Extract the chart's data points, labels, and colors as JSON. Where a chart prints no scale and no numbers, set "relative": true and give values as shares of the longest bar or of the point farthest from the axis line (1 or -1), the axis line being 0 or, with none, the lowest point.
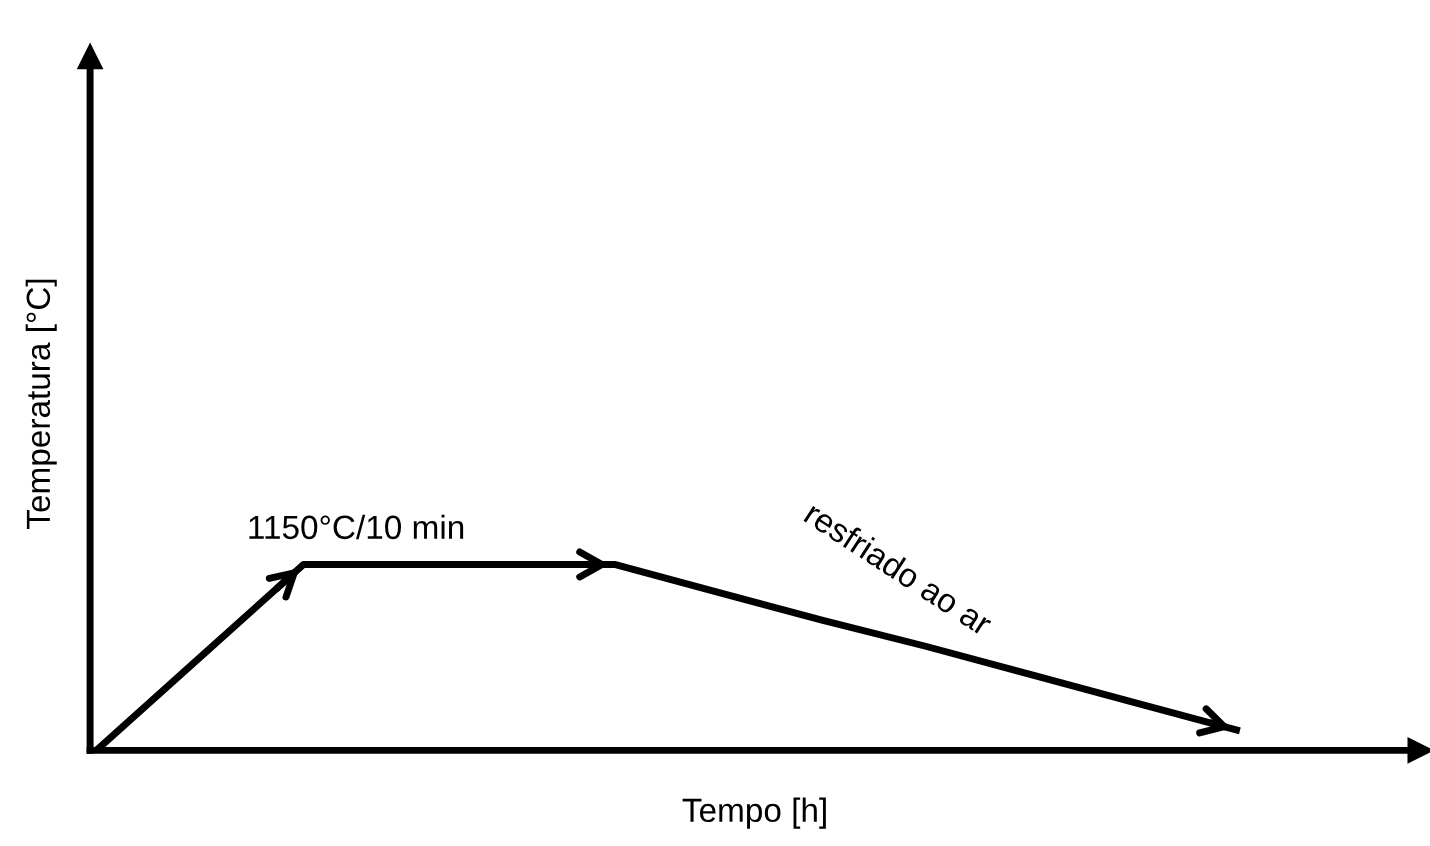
{
  "chart_data": {
    "type": "line",
    "relative": true,
    "xlabel": "Tempo [h]",
    "ylabel": "Temperatura [°C]",
    "categories": [
      null,
      null,
      null,
      null,
      null,
      null,
      null,
      null,
      null,
      null,
      null,
      null
    ],
    "series": [
      {
        "color": "#000000",
        "values": [
          0,
          0.5,
          1,
          1,
          1,
          1,
          0.85,
          0.7,
          0.56,
          0.41,
          0.26,
          0.11
        ]
      }
    ],
    "annotations": [
      "1150°C/10 min",
      "resfriado ao ar"
    ],
    "marker": "none",
    "line_style": "solid"
  }
}
